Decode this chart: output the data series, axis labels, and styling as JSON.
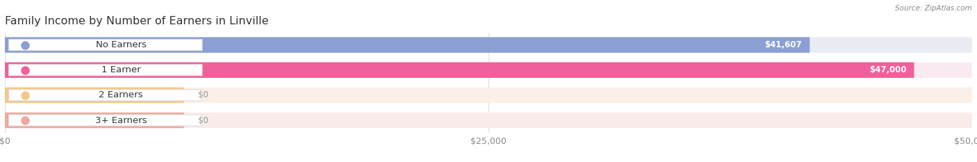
{
  "title": "Family Income by Number of Earners in Linville",
  "source": "Source: ZipAtlas.com",
  "categories": [
    "No Earners",
    "1 Earner",
    "2 Earners",
    "3+ Earners"
  ],
  "values": [
    41607,
    47000,
    0,
    0
  ],
  "bar_colors": [
    "#8b9fd4",
    "#f0609a",
    "#f5c88a",
    "#f0a8a0"
  ],
  "bar_bg_colors": [
    "#eaecf4",
    "#faeaf2",
    "#faf0e8",
    "#faecea"
  ],
  "value_labels": [
    "$41,607",
    "$47,000",
    "$0",
    "$0"
  ],
  "xlim": [
    0,
    50000
  ],
  "xticks": [
    0,
    25000,
    50000
  ],
  "xticklabels": [
    "$0",
    "$25,000",
    "$50,000"
  ],
  "background_color": "#ffffff",
  "title_fontsize": 11.5,
  "tick_fontsize": 9,
  "label_fontsize": 9.5,
  "value_fontsize": 8.5
}
